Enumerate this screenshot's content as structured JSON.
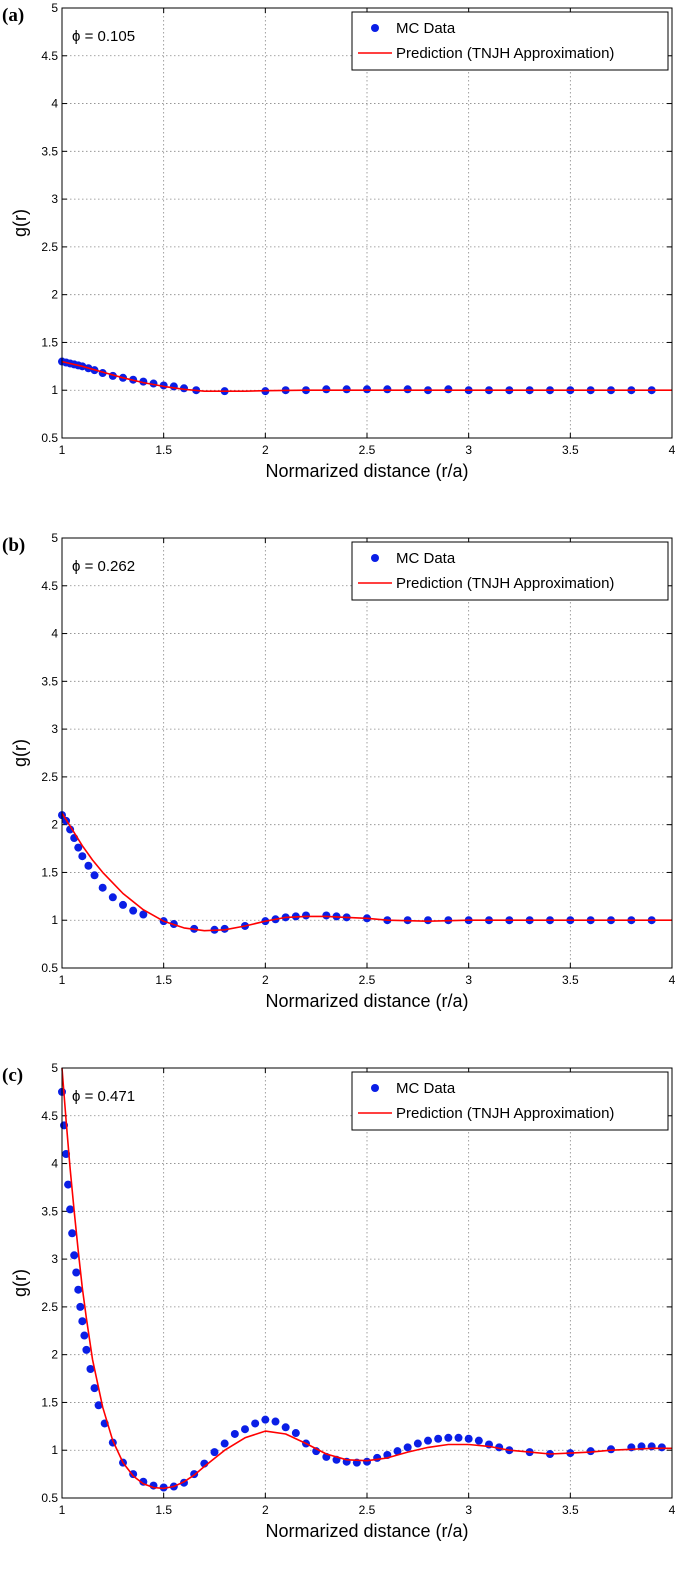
{
  "chart_data": [
    {
      "type": "scatter",
      "panel_label": "(a)",
      "annotation": "ϕ = 0.105",
      "title": "",
      "xlabel": "Normarized distance (r/a)",
      "ylabel": "g(r)",
      "xlim": [
        1,
        4
      ],
      "ylim": [
        0.5,
        5
      ],
      "xticks": [
        "1",
        "1.5",
        "2",
        "2.5",
        "3",
        "3.5",
        "4"
      ],
      "yticks": [
        "0.5",
        "1",
        "1.5",
        "2",
        "2.5",
        "3",
        "3.5",
        "4",
        "4.5",
        "5"
      ],
      "grid": true,
      "legend_position": "top-right",
      "marker_color": "#0a1ee6",
      "line_color": "#ff0000",
      "series": [
        {
          "name": "MC Data",
          "type": "scatter",
          "x": [
            1.0,
            1.02,
            1.04,
            1.06,
            1.08,
            1.1,
            1.13,
            1.16,
            1.2,
            1.25,
            1.3,
            1.35,
            1.4,
            1.45,
            1.5,
            1.55,
            1.6,
            1.66,
            1.8,
            2.0,
            2.1,
            2.2,
            2.3,
            2.4,
            2.5,
            2.6,
            2.7,
            2.8,
            2.9,
            3.0,
            3.1,
            3.2,
            3.3,
            3.4,
            3.5,
            3.6,
            3.7,
            3.8,
            3.9
          ],
          "y": [
            1.3,
            1.29,
            1.28,
            1.27,
            1.26,
            1.25,
            1.23,
            1.21,
            1.18,
            1.15,
            1.13,
            1.11,
            1.09,
            1.07,
            1.05,
            1.04,
            1.02,
            1.0,
            0.99,
            0.99,
            1.0,
            1.0,
            1.01,
            1.01,
            1.01,
            1.01,
            1.01,
            1.0,
            1.01,
            1.0,
            1.0,
            1.0,
            1.0,
            1.0,
            1.0,
            1.0,
            1.0,
            1.0,
            1.0
          ]
        },
        {
          "name": "Prediction (TNJH Approximation)",
          "type": "line",
          "x": [
            1.0,
            1.1,
            1.2,
            1.3,
            1.4,
            1.5,
            1.6,
            1.7,
            1.8,
            1.9,
            2.0,
            2.2,
            2.5,
            3.0,
            3.5,
            4.0
          ],
          "y": [
            1.3,
            1.25,
            1.19,
            1.13,
            1.08,
            1.04,
            1.01,
            0.99,
            0.99,
            0.99,
            0.995,
            1.0,
            1.0,
            1.0,
            1.0,
            1.0
          ]
        }
      ]
    },
    {
      "type": "scatter",
      "panel_label": "(b)",
      "annotation": "ϕ = 0.262",
      "title": "",
      "xlabel": "Normarized distance (r/a)",
      "ylabel": "g(r)",
      "xlim": [
        1,
        4
      ],
      "ylim": [
        0.5,
        5
      ],
      "xticks": [
        "1",
        "1.5",
        "2",
        "2.5",
        "3",
        "3.5",
        "4"
      ],
      "yticks": [
        "0.5",
        "1",
        "1.5",
        "2",
        "2.5",
        "3",
        "3.5",
        "4",
        "4.5",
        "5"
      ],
      "grid": true,
      "legend_position": "top-right",
      "marker_color": "#0a1ee6",
      "line_color": "#ff0000",
      "series": [
        {
          "name": "MC Data",
          "type": "scatter",
          "x": [
            1.0,
            1.02,
            1.04,
            1.06,
            1.08,
            1.1,
            1.13,
            1.16,
            1.2,
            1.25,
            1.3,
            1.35,
            1.4,
            1.5,
            1.55,
            1.65,
            1.75,
            1.8,
            1.9,
            2.0,
            2.05,
            2.1,
            2.15,
            2.2,
            2.3,
            2.35,
            2.4,
            2.5,
            2.6,
            2.7,
            2.8,
            2.9,
            3.0,
            3.1,
            3.2,
            3.3,
            3.4,
            3.5,
            3.6,
            3.7,
            3.8,
            3.9
          ],
          "y": [
            2.1,
            2.04,
            1.95,
            1.86,
            1.76,
            1.67,
            1.57,
            1.47,
            1.34,
            1.24,
            1.16,
            1.1,
            1.06,
            0.99,
            0.96,
            0.91,
            0.9,
            0.91,
            0.94,
            0.99,
            1.01,
            1.03,
            1.04,
            1.05,
            1.05,
            1.04,
            1.03,
            1.02,
            1.0,
            1.0,
            1.0,
            1.0,
            1.0,
            1.0,
            1.0,
            1.0,
            1.0,
            1.0,
            1.0,
            1.0,
            1.0,
            1.0
          ]
        },
        {
          "name": "Prediction (TNJH Approximation)",
          "type": "line",
          "x": [
            1.0,
            1.05,
            1.1,
            1.15,
            1.2,
            1.3,
            1.4,
            1.5,
            1.6,
            1.7,
            1.8,
            1.9,
            2.0,
            2.1,
            2.2,
            2.3,
            2.4,
            2.5,
            2.6,
            2.8,
            3.0,
            3.5,
            4.0
          ],
          "y": [
            2.12,
            1.95,
            1.78,
            1.63,
            1.5,
            1.28,
            1.11,
            0.99,
            0.92,
            0.89,
            0.9,
            0.94,
            0.99,
            1.03,
            1.04,
            1.04,
            1.03,
            1.02,
            1.0,
            0.99,
            1.0,
            1.0,
            1.0
          ]
        }
      ]
    },
    {
      "type": "scatter",
      "panel_label": "(c)",
      "annotation": "ϕ = 0.471",
      "title": "",
      "xlabel": "Normarized distance (r/a)",
      "ylabel": "g(r)",
      "xlim": [
        1,
        4
      ],
      "ylim": [
        0.5,
        5
      ],
      "xticks": [
        "1",
        "1.5",
        "2",
        "2.5",
        "3",
        "3.5",
        "4"
      ],
      "yticks": [
        "0.5",
        "1",
        "1.5",
        "2",
        "2.5",
        "3",
        "3.5",
        "4",
        "4.5",
        "5"
      ],
      "grid": true,
      "legend_position": "top-right",
      "marker_color": "#0a1ee6",
      "line_color": "#ff0000",
      "series": [
        {
          "name": "MC Data",
          "type": "scatter",
          "x": [
            1.0,
            1.01,
            1.02,
            1.03,
            1.04,
            1.05,
            1.06,
            1.07,
            1.08,
            1.09,
            1.1,
            1.11,
            1.12,
            1.14,
            1.16,
            1.18,
            1.21,
            1.25,
            1.3,
            1.35,
            1.4,
            1.45,
            1.5,
            1.55,
            1.6,
            1.65,
            1.7,
            1.75,
            1.8,
            1.85,
            1.9,
            1.95,
            2.0,
            2.05,
            2.1,
            2.15,
            2.2,
            2.25,
            2.3,
            2.35,
            2.4,
            2.45,
            2.5,
            2.55,
            2.6,
            2.65,
            2.7,
            2.75,
            2.8,
            2.85,
            2.9,
            2.95,
            3.0,
            3.05,
            3.1,
            3.15,
            3.2,
            3.3,
            3.4,
            3.5,
            3.6,
            3.7,
            3.8,
            3.85,
            3.9,
            3.95
          ],
          "y": [
            4.75,
            4.4,
            4.1,
            3.78,
            3.52,
            3.27,
            3.04,
            2.86,
            2.68,
            2.5,
            2.35,
            2.2,
            2.05,
            1.85,
            1.65,
            1.47,
            1.28,
            1.08,
            0.87,
            0.75,
            0.67,
            0.63,
            0.61,
            0.62,
            0.66,
            0.75,
            0.86,
            0.98,
            1.07,
            1.17,
            1.22,
            1.28,
            1.32,
            1.3,
            1.24,
            1.18,
            1.07,
            0.99,
            0.93,
            0.9,
            0.88,
            0.87,
            0.88,
            0.92,
            0.95,
            0.99,
            1.03,
            1.07,
            1.1,
            1.12,
            1.13,
            1.13,
            1.12,
            1.1,
            1.06,
            1.03,
            1.0,
            0.98,
            0.96,
            0.97,
            0.99,
            1.01,
            1.03,
            1.04,
            1.04,
            1.03
          ]
        },
        {
          "name": "Prediction (TNJH Approximation)",
          "type": "line",
          "x": [
            1.0,
            1.02,
            1.04,
            1.06,
            1.08,
            1.1,
            1.12,
            1.15,
            1.2,
            1.25,
            1.3,
            1.35,
            1.4,
            1.45,
            1.5,
            1.55,
            1.6,
            1.65,
            1.7,
            1.8,
            1.9,
            2.0,
            2.1,
            2.2,
            2.3,
            2.4,
            2.5,
            2.6,
            2.7,
            2.8,
            2.9,
            3.0,
            3.1,
            3.2,
            3.3,
            3.4,
            3.5,
            3.6,
            3.7,
            3.8,
            3.9,
            4.0
          ],
          "y": [
            5.0,
            4.45,
            3.95,
            3.5,
            3.08,
            2.7,
            2.38,
            1.95,
            1.45,
            1.1,
            0.87,
            0.73,
            0.65,
            0.61,
            0.6,
            0.62,
            0.67,
            0.74,
            0.83,
            1.0,
            1.13,
            1.2,
            1.17,
            1.07,
            0.96,
            0.9,
            0.89,
            0.92,
            0.98,
            1.03,
            1.06,
            1.06,
            1.04,
            1.0,
            0.98,
            0.96,
            0.97,
            0.98,
            1.0,
            1.01,
            1.02,
            1.02
          ]
        }
      ]
    }
  ]
}
